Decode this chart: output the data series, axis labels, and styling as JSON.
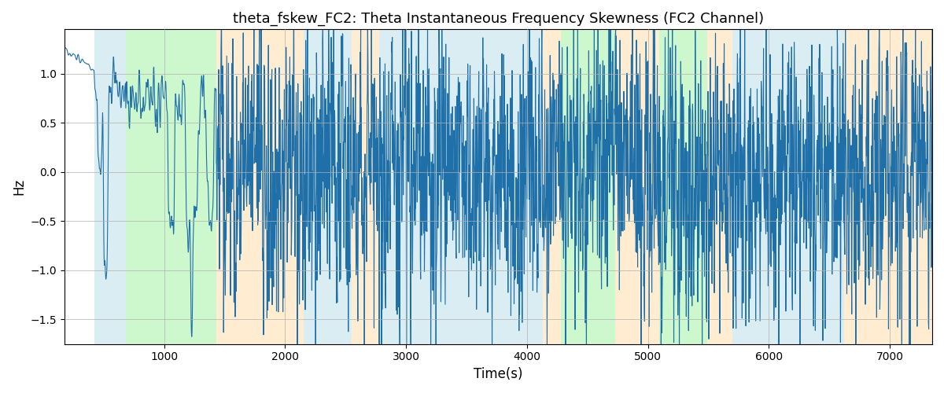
{
  "title": "theta_fskew_FC2: Theta Instantaneous Frequency Skewness (FC2 Channel)",
  "xlabel": "Time(s)",
  "ylabel": "Hz",
  "xlim": [
    175,
    7350
  ],
  "ylim": [
    -1.75,
    1.45
  ],
  "yticks": [
    -1.5,
    -1.0,
    -0.5,
    0.0,
    0.5,
    1.0
  ],
  "xticks": [
    1000,
    2000,
    3000,
    4000,
    5000,
    6000,
    7000
  ],
  "line_color": "#1f6fa8",
  "line_width": 0.8,
  "grid_color": "#b0b0b0",
  "background_color": "#ffffff",
  "bg_bands": [
    {
      "xstart": 420,
      "xend": 680,
      "color": "#add8e6",
      "alpha": 0.45
    },
    {
      "xstart": 680,
      "xend": 1430,
      "color": "#90ee90",
      "alpha": 0.45
    },
    {
      "xstart": 1430,
      "xend": 2150,
      "color": "#ffd59a",
      "alpha": 0.45
    },
    {
      "xstart": 2150,
      "xend": 2550,
      "color": "#add8e6",
      "alpha": 0.45
    },
    {
      "xstart": 2550,
      "xend": 2780,
      "color": "#ffd59a",
      "alpha": 0.45
    },
    {
      "xstart": 2780,
      "xend": 4130,
      "color": "#add8e6",
      "alpha": 0.45
    },
    {
      "xstart": 4130,
      "xend": 4280,
      "color": "#ffd59a",
      "alpha": 0.45
    },
    {
      "xstart": 4280,
      "xend": 4730,
      "color": "#90ee90",
      "alpha": 0.45
    },
    {
      "xstart": 4730,
      "xend": 5090,
      "color": "#ffd59a",
      "alpha": 0.45
    },
    {
      "xstart": 5090,
      "xend": 5490,
      "color": "#90ee90",
      "alpha": 0.45
    },
    {
      "xstart": 5490,
      "xend": 5700,
      "color": "#ffd59a",
      "alpha": 0.45
    },
    {
      "xstart": 5700,
      "xend": 6620,
      "color": "#add8e6",
      "alpha": 0.45
    },
    {
      "xstart": 6620,
      "xend": 7350,
      "color": "#ffd59a",
      "alpha": 0.45
    }
  ],
  "seed": 137,
  "n_points": 3000
}
